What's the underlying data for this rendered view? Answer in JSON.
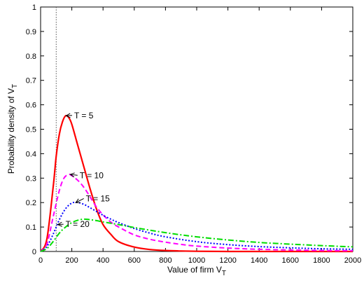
{
  "chart_data": {
    "type": "line",
    "xlabel": "Value of firm V",
    "xlabel_sub": "T",
    "ylabel": "Probability density of V",
    "ylabel_sub": "T",
    "xlim": [
      0,
      2000
    ],
    "ylim": [
      0,
      1
    ],
    "xticks": [
      0,
      200,
      400,
      600,
      800,
      1000,
      1200,
      1400,
      1600,
      1800,
      2000
    ],
    "yticks": [
      0,
      0.1,
      0.2,
      0.3,
      0.4,
      0.5,
      0.6,
      0.7,
      0.8,
      0.9,
      1
    ],
    "ytick_labels": [
      "0",
      "0.1",
      "0.2",
      "0.3",
      "0.4",
      "0.5",
      "0.6",
      "0.7",
      "0.8",
      "0.9",
      "1"
    ],
    "grid": false,
    "vertical_line": {
      "x": 100,
      "style": "dotted",
      "color": "#555555"
    },
    "series": [
      {
        "name": "T = 5",
        "color": "#ff0000",
        "style": "solid",
        "x": [
          0,
          40,
          80,
          100,
          120,
          140,
          160,
          180,
          200,
          240,
          280,
          320,
          360,
          400,
          450,
          500,
          600,
          700,
          800,
          900,
          1000,
          1200,
          1500,
          2000
        ],
        "y": [
          0,
          0.05,
          0.26,
          0.39,
          0.48,
          0.53,
          0.555,
          0.548,
          0.52,
          0.43,
          0.34,
          0.25,
          0.17,
          0.11,
          0.07,
          0.04,
          0.018,
          0.008,
          0.004,
          0.002,
          0.001,
          0,
          0,
          0
        ]
      },
      {
        "name": "T = 10",
        "color": "#ff00ff",
        "style": "dashed",
        "x": [
          0,
          40,
          80,
          120,
          150,
          180,
          200,
          240,
          280,
          320,
          360,
          400,
          450,
          500,
          600,
          700,
          800,
          900,
          1000,
          1200,
          1400,
          1600,
          1800,
          2000
        ],
        "y": [
          0,
          0.03,
          0.14,
          0.25,
          0.3,
          0.315,
          0.31,
          0.29,
          0.26,
          0.22,
          0.18,
          0.15,
          0.12,
          0.1,
          0.068,
          0.05,
          0.038,
          0.029,
          0.022,
          0.014,
          0.009,
          0.006,
          0.004,
          0.003
        ]
      },
      {
        "name": "T = 15",
        "color": "#0000ff",
        "style": "dotted",
        "x": [
          0,
          40,
          80,
          120,
          160,
          200,
          240,
          280,
          320,
          360,
          400,
          450,
          500,
          600,
          700,
          800,
          1000,
          1200,
          1400,
          1600,
          1800,
          2000
        ],
        "y": [
          0,
          0.02,
          0.07,
          0.13,
          0.175,
          0.198,
          0.2,
          0.192,
          0.178,
          0.163,
          0.148,
          0.132,
          0.118,
          0.094,
          0.075,
          0.06,
          0.04,
          0.028,
          0.02,
          0.015,
          0.011,
          0.009
        ]
      },
      {
        "name": "T = 20",
        "color": "#00dd00",
        "style": "dashdot",
        "x": [
          0,
          40,
          80,
          120,
          160,
          200,
          240,
          280,
          320,
          360,
          400,
          500,
          600,
          700,
          800,
          900,
          1000,
          1200,
          1400,
          1600,
          1800,
          2000
        ],
        "y": [
          0,
          0.012,
          0.04,
          0.075,
          0.1,
          0.118,
          0.128,
          0.132,
          0.13,
          0.126,
          0.121,
          0.11,
          0.098,
          0.087,
          0.077,
          0.068,
          0.06,
          0.047,
          0.037,
          0.03,
          0.024,
          0.019
        ]
      }
    ],
    "annotations": [
      {
        "text": "T = 5",
        "point": [
          163,
          0.555
        ],
        "text_pos": [
          215,
          0.545
        ]
      },
      {
        "text": "T = 10",
        "point": [
          190,
          0.315
        ],
        "text_pos": [
          250,
          0.3
        ]
      },
      {
        "text": "T = 15",
        "point": [
          225,
          0.2
        ],
        "text_pos": [
          290,
          0.205
        ]
      },
      {
        "text": "T = 20",
        "point": [
          110,
          0.11
        ],
        "text_pos": [
          160,
          0.1
        ]
      }
    ]
  }
}
